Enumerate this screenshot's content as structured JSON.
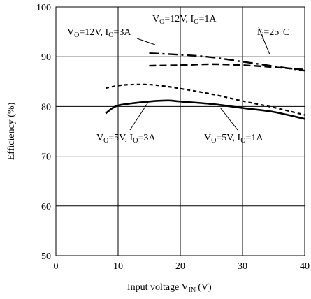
{
  "chart_data": {
    "type": "line",
    "xlabel": "Input voltage V",
    "xlabel_sub": "IN",
    "xlabel_unit": "(V)",
    "ylabel": "Efficiency (%)",
    "xlim": [
      0,
      40
    ],
    "ylim": [
      50,
      100
    ],
    "x_ticks": [
      "0",
      "10",
      "20",
      "30",
      "40"
    ],
    "y_ticks": [
      "50",
      "60",
      "70",
      "80",
      "90",
      "100"
    ],
    "grid": true,
    "series": [
      {
        "name": "VO=12V, IO=1A",
        "style": "dashdot",
        "x": [
          15,
          20,
          25,
          30,
          35,
          40
        ],
        "y": [
          90.7,
          90.4,
          89.9,
          89.0,
          88.1,
          87.2
        ]
      },
      {
        "name": "VO=12V, IO=3A",
        "style": "dashed",
        "x": [
          15,
          20,
          25,
          30,
          35,
          40
        ],
        "y": [
          88.2,
          88.3,
          88.5,
          88.3,
          87.9,
          87.4
        ]
      },
      {
        "name": "VO=5V, IO=1A",
        "style": "dotted",
        "x": [
          8,
          10,
          12,
          15,
          18,
          20,
          25,
          30,
          35,
          40
        ],
        "y": [
          83.7,
          84.2,
          84.4,
          84.4,
          84.0,
          83.6,
          82.5,
          81.1,
          79.8,
          78.3
        ]
      },
      {
        "name": "VO=5V, IO=3A",
        "style": "solid",
        "x": [
          8,
          9,
          10,
          12,
          15,
          18,
          20,
          25,
          30,
          35,
          40
        ],
        "y": [
          78.6,
          79.6,
          80.2,
          80.6,
          81.0,
          81.2,
          81.0,
          80.5,
          79.7,
          78.9,
          77.5
        ]
      }
    ],
    "annotations": [
      {
        "text": "VO=12V, IO=1A",
        "parts": [
          "V",
          "O",
          "=12V, I",
          "O",
          "=1A"
        ]
      },
      {
        "text": "VO=12V, IO=3A",
        "parts": [
          "V",
          "O",
          "=12V, I",
          "O",
          "=3A"
        ]
      },
      {
        "text": "VO=5V, IO=3A",
        "parts": [
          "V",
          "O",
          "=5V, I",
          "O",
          "=3A"
        ]
      },
      {
        "text": "VO=5V, IO=1A",
        "parts": [
          "V",
          "O",
          "=5V, I",
          "O",
          "=1A"
        ]
      },
      {
        "text": "Tj=25°C",
        "parts": [
          "T",
          "j",
          "=25°C"
        ]
      }
    ]
  }
}
